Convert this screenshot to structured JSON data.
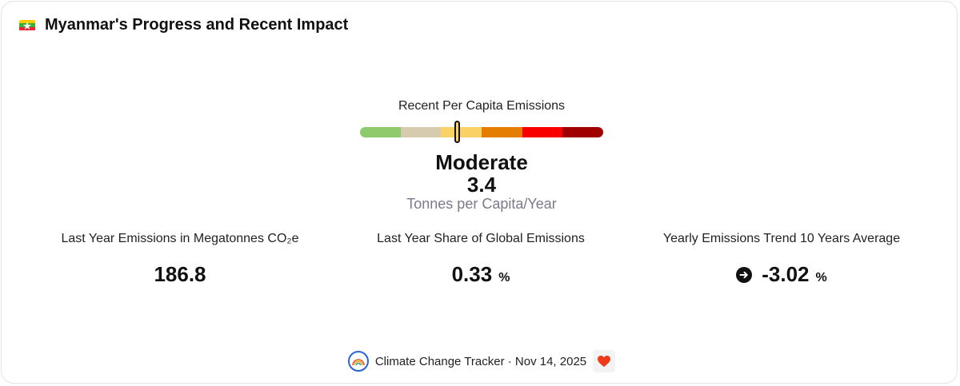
{
  "header": {
    "title": "Myanmar's Progress and Recent Impact",
    "flag_icon": "myanmar-flag-icon"
  },
  "gauge": {
    "label": "Recent Per Capita Emissions",
    "level": "Moderate",
    "value": "3.4",
    "unit": "Tonnes per Capita/Year",
    "marker_position": 0.4,
    "segment_colors": [
      "#8ECB6C",
      "#D6CBAE",
      "#FAD165",
      "#E57E00",
      "#F90000",
      "#A10000"
    ]
  },
  "stats": [
    {
      "label": "Last Year Emissions in Megatonnes CO₂e",
      "value": "186.8",
      "unit": ""
    },
    {
      "label": "Last Year Share of Global Emissions",
      "value": "0.33",
      "unit": "%"
    },
    {
      "label": "Yearly Emissions Trend 10 Years Average",
      "value": "-3.02",
      "unit": "%",
      "icon": "arrow-right-circle-icon"
    }
  ],
  "footer": {
    "text": "Climate Change Tracker · Nov 14, 2025",
    "logo_icon": "climate-change-tracker-logo",
    "heart_icon": "heart-icon"
  }
}
